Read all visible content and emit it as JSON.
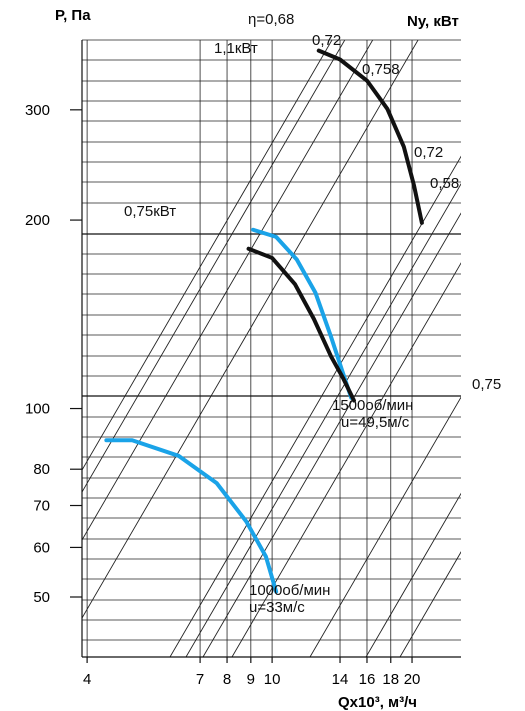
{
  "chart_data": {
    "type": "line",
    "ylabel": "P, Па",
    "y2label": "Ny, кВт",
    "xlabel": "Qx10³, м³/ч",
    "x_scale": "log",
    "y_scale": "log",
    "xlim": [
      3.6,
      26
    ],
    "ylim": [
      40,
      400
    ],
    "x_ticks": [
      4,
      7,
      8,
      9,
      10,
      14,
      16,
      18,
      20
    ],
    "x_tick_labels": [
      "4",
      "7",
      "8",
      "9",
      "10",
      "14",
      "16",
      "18",
      "20"
    ],
    "y_ticks": [
      50,
      60,
      70,
      80,
      100,
      200,
      300
    ],
    "y_tick_labels": [
      "50",
      "60",
      "70",
      "80",
      "100",
      "200",
      "300"
    ],
    "grid": true,
    "series": [
      {
        "name": "1500об/мин",
        "color": "#1aa3e8",
        "x": [
          9.1,
          10.2,
          11.3,
          12.4,
          13.4,
          14.2,
          14.8
        ],
        "y": [
          193,
          188,
          173,
          153,
          130,
          114,
          104
        ]
      },
      {
        "name": "1500об/мин",
        "color": "#111111",
        "x": [
          8.9,
          10.0,
          11.2,
          12.3,
          13.4,
          14.2,
          15.0
        ],
        "y": [
          180,
          174,
          158,
          139,
          121,
          112,
          103
        ]
      },
      {
        "name": "1000об/мин",
        "color": "#1aa3e8",
        "x": [
          4.4,
          5.0,
          6.3,
          7.6,
          8.8,
          9.7,
          10.2
        ],
        "y": [
          89,
          89,
          84,
          76,
          66,
          58,
          51
        ]
      },
      {
        "name": "",
        "color": "#111111",
        "x": [
          12.6,
          14.0,
          16.0,
          17.7,
          19.2,
          20.2,
          21.0
        ],
        "y": [
          373,
          361,
          334,
          301,
          262,
          227,
          198
        ]
      }
    ],
    "power_lines": [
      {
        "label": "1,1кВт",
        "y": 355
      },
      {
        "label": "0,75кВт",
        "y": 193
      },
      {
        "label": "0,75",
        "y": 103
      }
    ],
    "annotations": [
      "η=0,68",
      "0,72",
      "0,758",
      "0,72",
      "0,58",
      "1500об/мин",
      "u=49,5м/с",
      "1000об/мин",
      "u=33м/с"
    ]
  }
}
